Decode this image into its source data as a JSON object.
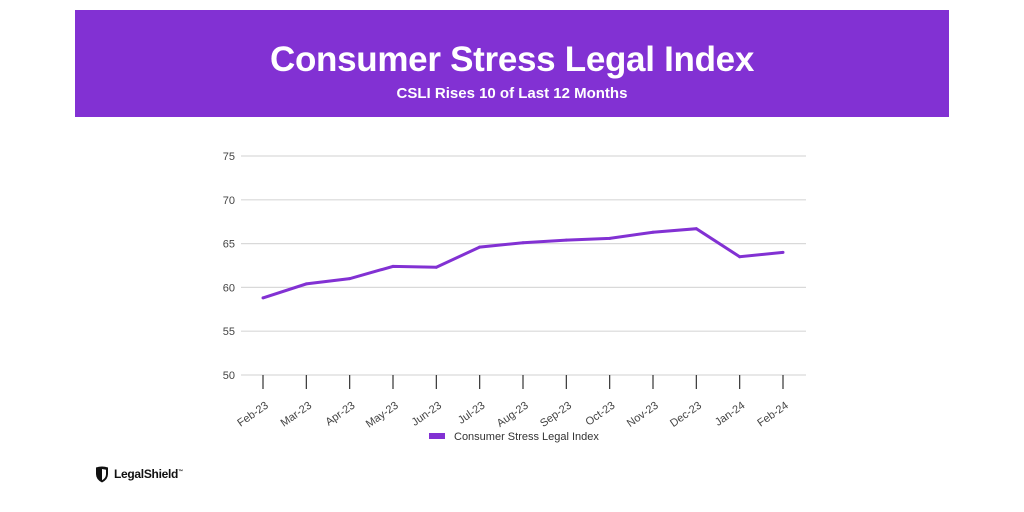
{
  "header": {
    "title": "Consumer Stress Legal Index",
    "subtitle": "CSLI Rises 10 of Last 12 Months"
  },
  "colors": {
    "banner": "#8231d3",
    "line": "#8231d3",
    "grid": "#d9d9d9",
    "axis": "#333333"
  },
  "logo": {
    "icon": "shield-icon",
    "text": "LegalShield",
    "tm": "™"
  },
  "chart_data": {
    "type": "line",
    "title": "Consumer Stress Legal Index",
    "subtitle": "CSLI Rises 10 of Last 12 Months",
    "xlabel": "",
    "ylabel": "",
    "categories": [
      "Feb-23",
      "Mar-23",
      "Apr-23",
      "May-23",
      "Jun-23",
      "Jul-23",
      "Aug-23",
      "Sep-23",
      "Oct-23",
      "Nov-23",
      "Dec-23",
      "Jan-24",
      "Feb-24"
    ],
    "series": [
      {
        "name": "Consumer Stress Legal Index",
        "values": [
          58.8,
          60.4,
          61.0,
          62.4,
          62.3,
          64.6,
          65.1,
          65.4,
          65.6,
          66.3,
          66.7,
          63.5,
          64.0
        ]
      }
    ],
    "ylim": [
      50,
      75
    ],
    "yticks": [
      50,
      55,
      60,
      65,
      70,
      75
    ],
    "grid": true,
    "legend": "bottom-center"
  }
}
